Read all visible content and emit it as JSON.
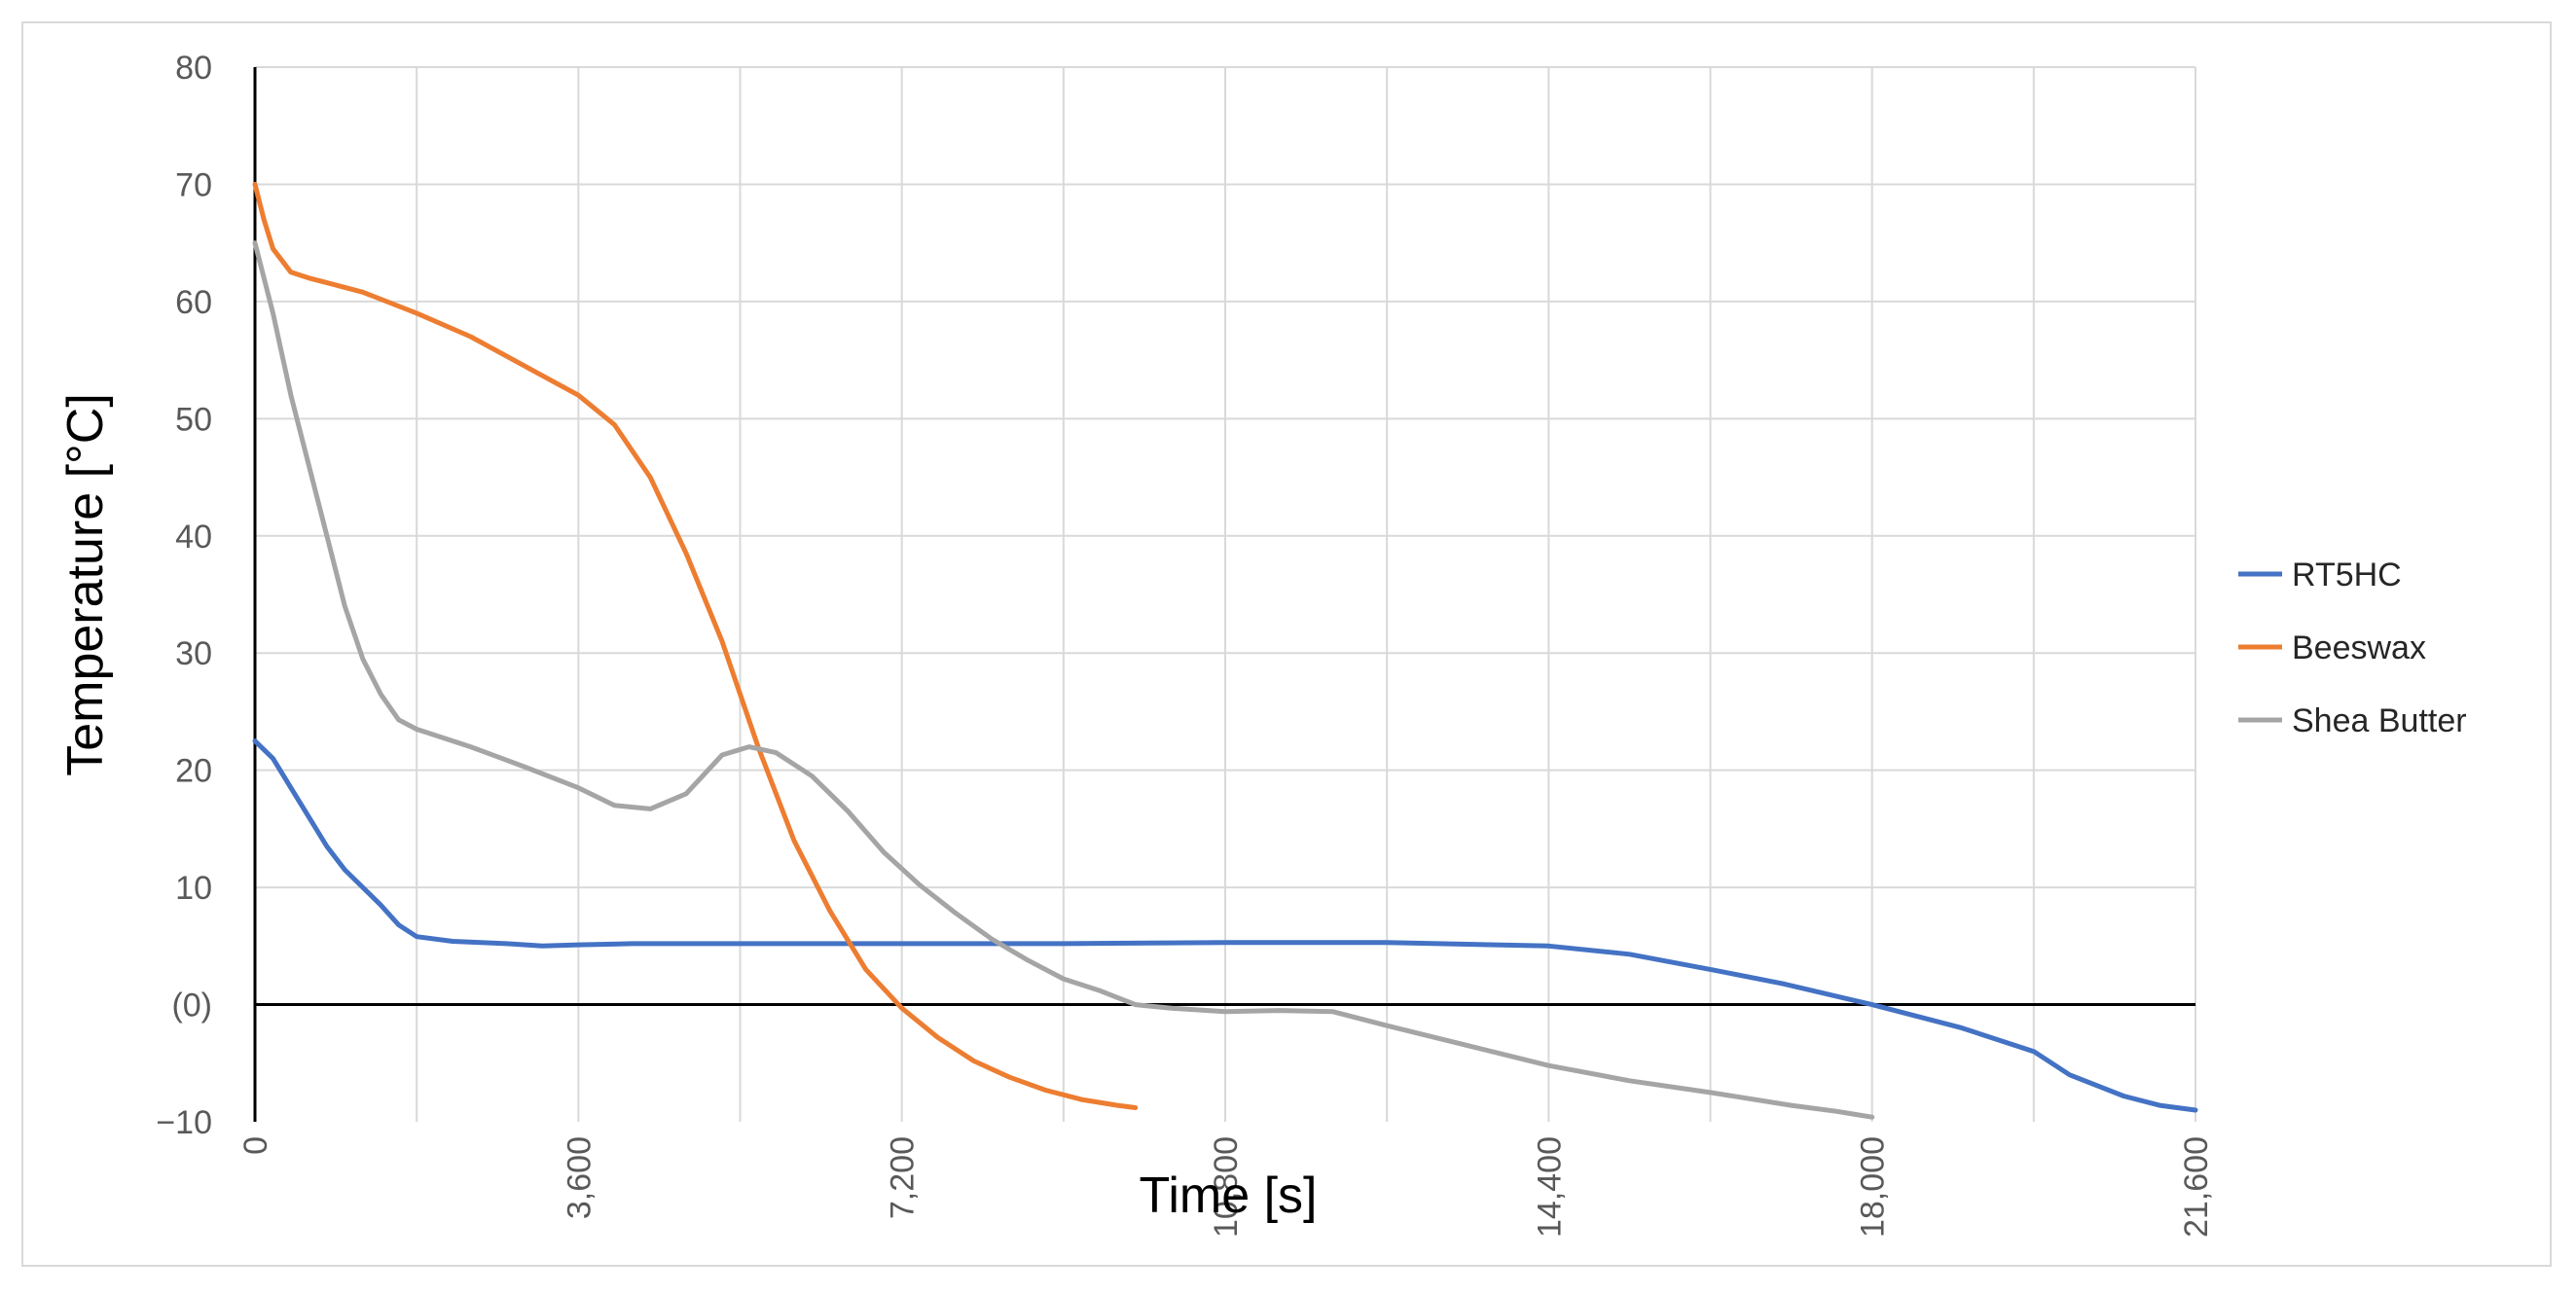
{
  "chart_data": {
    "type": "line",
    "title": "",
    "xlabel": "Time [s]",
    "ylabel": "Temperature [°C]",
    "xlim": [
      0,
      21600
    ],
    "ylim": [
      -10,
      80
    ],
    "x_ticks": [
      {
        "value": 0,
        "label": "0"
      },
      {
        "value": 3600,
        "label": "3,600"
      },
      {
        "value": 7200,
        "label": "7,200"
      },
      {
        "value": 10800,
        "label": "10,800"
      },
      {
        "value": 14400,
        "label": "14,400"
      },
      {
        "value": 18000,
        "label": "18,000"
      },
      {
        "value": 21600,
        "label": "21,600"
      }
    ],
    "x_gridlines": [
      0,
      1800,
      3600,
      5400,
      7200,
      9000,
      10800,
      12600,
      14400,
      16200,
      18000,
      19800,
      21600
    ],
    "y_ticks": [
      {
        "value": 80,
        "label": "80"
      },
      {
        "value": 70,
        "label": "70"
      },
      {
        "value": 60,
        "label": "60"
      },
      {
        "value": 50,
        "label": "50"
      },
      {
        "value": 40,
        "label": "40"
      },
      {
        "value": 30,
        "label": "30"
      },
      {
        "value": 20,
        "label": "20"
      },
      {
        "value": 10,
        "label": "10"
      },
      {
        "value": 0,
        "label": "(0)"
      },
      {
        "value": -10,
        "label": "−10"
      }
    ],
    "grid": true,
    "legend_position": "right",
    "series": [
      {
        "name": "RT5HC",
        "color": "#4472C4",
        "points": [
          [
            0,
            22.5
          ],
          [
            200,
            21
          ],
          [
            400,
            18.5
          ],
          [
            600,
            16
          ],
          [
            800,
            13.5
          ],
          [
            1000,
            11.5
          ],
          [
            1200,
            10
          ],
          [
            1400,
            8.5
          ],
          [
            1600,
            6.8
          ],
          [
            1800,
            5.8
          ],
          [
            2200,
            5.4
          ],
          [
            2800,
            5.2
          ],
          [
            3200,
            5
          ],
          [
            3600,
            5.1
          ],
          [
            4200,
            5.2
          ],
          [
            5400,
            5.2
          ],
          [
            7200,
            5.2
          ],
          [
            9000,
            5.2
          ],
          [
            10800,
            5.3
          ],
          [
            12600,
            5.3
          ],
          [
            14400,
            5
          ],
          [
            15300,
            4.3
          ],
          [
            16200,
            3
          ],
          [
            17000,
            1.8
          ],
          [
            18000,
            0
          ],
          [
            19000,
            -2
          ],
          [
            19800,
            -4
          ],
          [
            20200,
            -6
          ],
          [
            20800,
            -7.8
          ],
          [
            21200,
            -8.6
          ],
          [
            21600,
            -9
          ]
        ]
      },
      {
        "name": "Beeswax",
        "color": "#ED7D31",
        "points": [
          [
            0,
            70
          ],
          [
            100,
            67
          ],
          [
            200,
            64.5
          ],
          [
            400,
            62.5
          ],
          [
            600,
            62
          ],
          [
            800,
            61.6
          ],
          [
            1200,
            60.8
          ],
          [
            1800,
            59
          ],
          [
            2400,
            57
          ],
          [
            3000,
            54.5
          ],
          [
            3600,
            52
          ],
          [
            4000,
            49.5
          ],
          [
            4400,
            45
          ],
          [
            4800,
            38.5
          ],
          [
            5200,
            31
          ],
          [
            5600,
            22
          ],
          [
            6000,
            14
          ],
          [
            6400,
            8
          ],
          [
            6800,
            3
          ],
          [
            7200,
            -0.3
          ],
          [
            7600,
            -2.8
          ],
          [
            8000,
            -4.8
          ],
          [
            8400,
            -6.2
          ],
          [
            8800,
            -7.3
          ],
          [
            9200,
            -8.1
          ],
          [
            9600,
            -8.6
          ],
          [
            9800,
            -8.8
          ]
        ]
      },
      {
        "name": "Shea Butter",
        "color": "#A5A5A5",
        "points": [
          [
            0,
            65
          ],
          [
            200,
            59
          ],
          [
            400,
            52
          ],
          [
            600,
            46
          ],
          [
            800,
            40
          ],
          [
            1000,
            34
          ],
          [
            1200,
            29.5
          ],
          [
            1400,
            26.5
          ],
          [
            1600,
            24.3
          ],
          [
            1800,
            23.5
          ],
          [
            2400,
            22
          ],
          [
            3000,
            20.3
          ],
          [
            3600,
            18.5
          ],
          [
            4000,
            17
          ],
          [
            4400,
            16.7
          ],
          [
            4800,
            18
          ],
          [
            5200,
            21.3
          ],
          [
            5500,
            22
          ],
          [
            5800,
            21.5
          ],
          [
            6200,
            19.5
          ],
          [
            6600,
            16.5
          ],
          [
            7000,
            13
          ],
          [
            7400,
            10.2
          ],
          [
            7800,
            7.8
          ],
          [
            8200,
            5.6
          ],
          [
            8600,
            3.8
          ],
          [
            9000,
            2.2
          ],
          [
            9400,
            1.2
          ],
          [
            9800,
            0
          ],
          [
            10200,
            -0.3
          ],
          [
            10800,
            -0.6
          ],
          [
            11400,
            -0.5
          ],
          [
            12000,
            -0.6
          ],
          [
            12600,
            -1.8
          ],
          [
            13500,
            -3.5
          ],
          [
            14400,
            -5.2
          ],
          [
            15300,
            -6.5
          ],
          [
            16200,
            -7.5
          ],
          [
            17100,
            -8.6
          ],
          [
            17600,
            -9.1
          ],
          [
            18000,
            -9.6
          ]
        ]
      }
    ]
  }
}
